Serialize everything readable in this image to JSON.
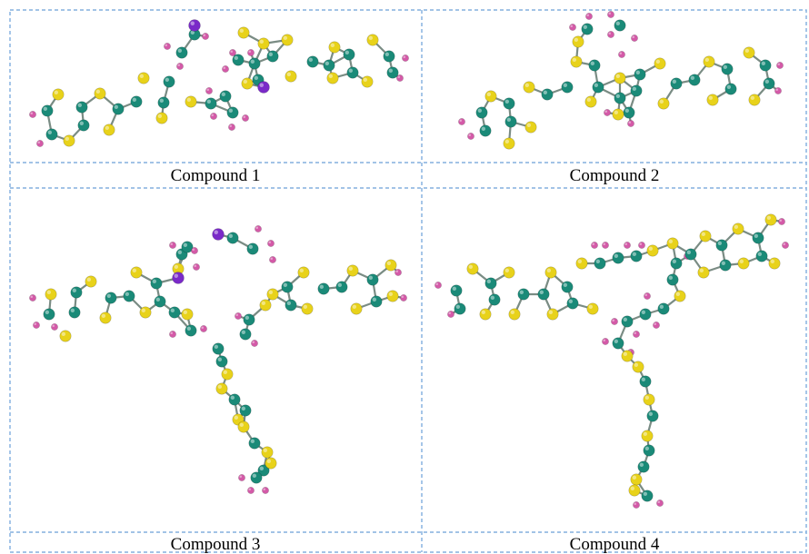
{
  "figure": {
    "panels": [
      {
        "id": "p1",
        "caption": "Compound 1"
      },
      {
        "id": "p2",
        "caption": "Compound 2"
      },
      {
        "id": "p3",
        "caption": "Compound 3"
      },
      {
        "id": "p4",
        "caption": "Compound 4"
      }
    ],
    "colors": {
      "grid_line": "#6a9fd8",
      "carbon_atom": "#1a8a78",
      "sulfur_atom": "#e8d21a",
      "hydrogen_atom": "#d45aa8",
      "iodine_atom": "#7a2ac8"
    }
  }
}
